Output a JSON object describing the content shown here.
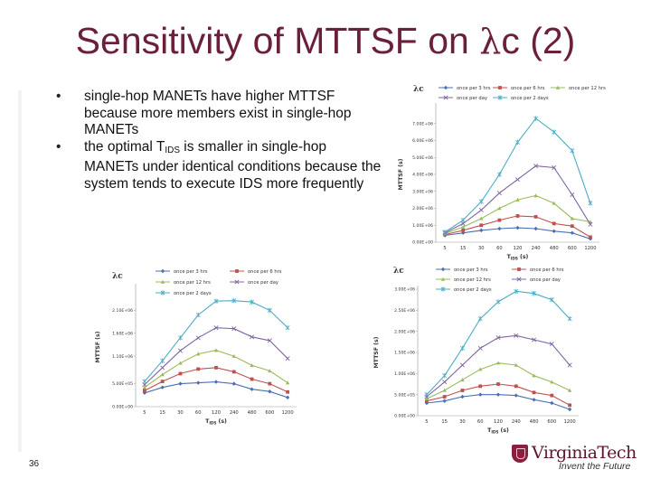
{
  "slide": {
    "title_prefix": "Sensitivity of MTTSF on ",
    "title_lambda": "λ",
    "title_suffix": "c (2)",
    "page_number": "36",
    "logo_name": "VirginiaTech",
    "logo_tagline": "Invent the Future"
  },
  "bullets": [
    {
      "text": "single-hop MANETs have higher MTTSF because more members exist in single-hop MANETs"
    },
    {
      "pre": "the optimal T",
      "sub": "IDS",
      "post": " is smaller in single-hop MANETs under identical conditions because the system tends to execute IDS more frequently"
    }
  ],
  "colors": {
    "title": "#6b1f3d",
    "series": [
      "#4a6fb5",
      "#c0504d",
      "#9bbb59",
      "#8064a2",
      "#4bacc6"
    ]
  },
  "chart_data": [
    {
      "type": "line",
      "lambda_label": "λc",
      "xlabel_main": "T",
      "xlabel_sub": "IDS",
      "xlabel_unit": " (s)",
      "ylabel": "MTTSF (s)",
      "categories": [
        "5",
        "15",
        "30",
        "60",
        "120",
        "240",
        "480",
        "600",
        "1200"
      ],
      "ylim": [
        0,
        8000000
      ],
      "yticks": [
        0,
        1000000,
        2000000,
        3000000,
        4000000,
        5000000,
        6000000,
        7000000
      ],
      "ytick_labels": [
        "0.00E+00",
        "1.00E+06",
        "2.00E+06",
        "3.00E+06",
        "4.00E+06",
        "5.00E+06",
        "6.00E+06",
        "7.00E+06"
      ],
      "legend_order": [
        0,
        1,
        2,
        3,
        4
      ],
      "series": [
        {
          "name": "once per 3 hrs",
          "marker": "diamond",
          "values": [
            400000,
            550000,
            700000,
            800000,
            850000,
            800000,
            650000,
            550000,
            200000
          ]
        },
        {
          "name": "once per 6 hrs",
          "marker": "square",
          "values": [
            450000,
            700000,
            1000000,
            1300000,
            1550000,
            1500000,
            1100000,
            950000,
            300000
          ]
        },
        {
          "name": "once per 12 hrs",
          "marker": "triangle",
          "values": [
            500000,
            900000,
            1400000,
            2000000,
            2500000,
            2750000,
            2300000,
            1400000,
            1200000
          ]
        },
        {
          "name": "once per day",
          "marker": "cross",
          "values": [
            550000,
            1100000,
            1900000,
            2900000,
            3700000,
            4500000,
            4400000,
            2800000,
            1050000
          ]
        },
        {
          "name": "once per 2 days",
          "marker": "star",
          "values": [
            600000,
            1300000,
            2400000,
            4000000,
            5900000,
            7300000,
            6500000,
            5400000,
            2300000
          ]
        }
      ]
    },
    {
      "type": "line",
      "lambda_label": "λc",
      "xlabel_main": "T",
      "xlabel_sub": "IDS",
      "xlabel_unit": " (s)",
      "ylabel": "MTTSF (s)",
      "categories": [
        "5",
        "15",
        "30",
        "60",
        "120",
        "240",
        "480",
        "600",
        "1200"
      ],
      "ylim": [
        0,
        2600000
      ],
      "yticks": [
        0,
        500000,
        1100000,
        1600000,
        2100000
      ],
      "ytick_labels": [
        "0.00E+00",
        "5.00E+05",
        "1.10E+06",
        "1.60E+06",
        "2.10E+06"
      ],
      "legend_order": [
        0,
        1,
        2,
        3,
        4
      ],
      "series": [
        {
          "name": "once per 3 hrs",
          "marker": "diamond",
          "values": [
            300000,
            420000,
            500000,
            520000,
            540000,
            500000,
            380000,
            330000,
            200000
          ]
        },
        {
          "name": "once per 6 hrs",
          "marker": "square",
          "values": [
            350000,
            550000,
            720000,
            820000,
            850000,
            760000,
            600000,
            500000,
            320000
          ]
        },
        {
          "name": "once per 12 hrs",
          "marker": "triangle",
          "values": [
            420000,
            700000,
            950000,
            1150000,
            1230000,
            1100000,
            900000,
            780000,
            520000
          ]
        },
        {
          "name": "once per day",
          "marker": "cross",
          "values": [
            480000,
            850000,
            1220000,
            1500000,
            1720000,
            1700000,
            1520000,
            1440000,
            1050000
          ]
        },
        {
          "name": "once per 2 days",
          "marker": "star",
          "values": [
            550000,
            1000000,
            1500000,
            2000000,
            2300000,
            2310000,
            2280000,
            2100000,
            1720000
          ]
        }
      ]
    },
    {
      "type": "line",
      "lambda_label": "λc",
      "xlabel_main": "T",
      "xlabel_sub": "IDS",
      "xlabel_unit": " (s)",
      "ylabel": "MTTSF (s)",
      "categories": [
        "5",
        "15",
        "30",
        "60",
        "120",
        "240",
        "480",
        "600",
        "1200"
      ],
      "ylim": [
        0,
        3000000
      ],
      "yticks": [
        0,
        500000,
        1000000,
        1500000,
        2000000,
        2500000,
        3000000
      ],
      "ytick_labels": [
        "0.00E+00",
        "5.00E+05",
        "1.00E+06",
        "1.50E+06",
        "2.00E+06",
        "2.50E+06",
        "3.00E+06"
      ],
      "legend_order": [
        0,
        1,
        2,
        3,
        4
      ],
      "series": [
        {
          "name": "once per 3 hrs",
          "marker": "diamond",
          "values": [
            300000,
            350000,
            450000,
            500000,
            500000,
            480000,
            380000,
            300000,
            150000
          ]
        },
        {
          "name": "once per 6 hrs",
          "marker": "square",
          "values": [
            350000,
            450000,
            600000,
            700000,
            750000,
            700000,
            550000,
            480000,
            250000
          ]
        },
        {
          "name": "once per 12 hrs",
          "marker": "triangle",
          "values": [
            400000,
            600000,
            850000,
            1100000,
            1250000,
            1200000,
            950000,
            800000,
            600000
          ]
        },
        {
          "name": "once per day",
          "marker": "cross",
          "values": [
            450000,
            800000,
            1200000,
            1600000,
            1850000,
            1900000,
            1800000,
            1700000,
            1200000
          ]
        },
        {
          "name": "once per 2 days",
          "marker": "star",
          "values": [
            500000,
            950000,
            1600000,
            2300000,
            2700000,
            2950000,
            2900000,
            2750000,
            2300000
          ]
        }
      ]
    }
  ]
}
